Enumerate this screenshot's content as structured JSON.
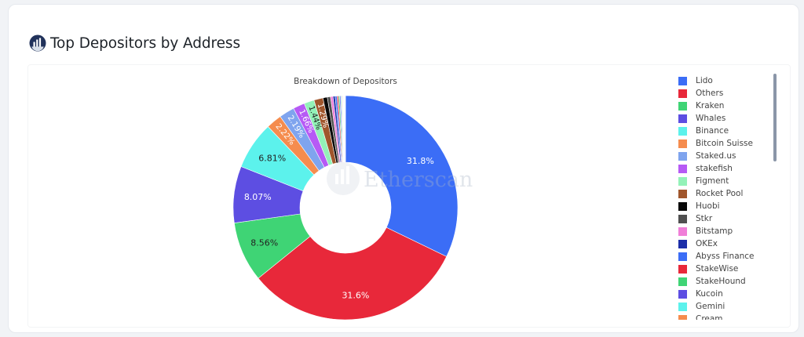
{
  "header": {
    "title": "Top Depositors by Address",
    "logo_icon": "etherscan-logo-icon"
  },
  "watermark": {
    "text": "Etherscan"
  },
  "chart_data": {
    "type": "pie",
    "donut": true,
    "title": "Breakdown of Depositors",
    "legend_position": "right",
    "slices": [
      {
        "label": "Lido",
        "value": 31.8,
        "color": "#3b6df6",
        "show_label": "31.8%"
      },
      {
        "label": "Others",
        "value": 31.6,
        "color": "#e8283a",
        "show_label": "31.6%"
      },
      {
        "label": "Kraken",
        "value": 8.56,
        "color": "#3fd475",
        "show_label": "8.56%"
      },
      {
        "label": "Whales",
        "value": 8.07,
        "color": "#5d4ee2",
        "show_label": "8.07%"
      },
      {
        "label": "Binance",
        "value": 6.81,
        "color": "#5cf2ec",
        "show_label": "6.81%"
      },
      {
        "label": "Bitcoin Suisse",
        "value": 2.22,
        "color": "#f58c4e",
        "show_label": "2.22%"
      },
      {
        "label": "Staked.us",
        "value": 2.19,
        "color": "#7fa4ee",
        "show_label": "2.19%"
      },
      {
        "label": "stakefish",
        "value": 1.66,
        "color": "#b65af5",
        "show_label": "1.66%"
      },
      {
        "label": "Figment",
        "value": 1.44,
        "color": "#93f2b8",
        "show_label": "1.44%"
      },
      {
        "label": "Rocket Pool",
        "value": 1.29,
        "color": "#a0562c",
        "show_label": "1.29%"
      },
      {
        "label": "Huobi",
        "value": 0.62,
        "color": "#080808",
        "show_label": ""
      },
      {
        "label": "Stkr",
        "value": 0.45,
        "color": "#505050",
        "show_label": ""
      },
      {
        "label": "Bitstamp",
        "value": 0.36,
        "color": "#f07ed8",
        "show_label": ""
      },
      {
        "label": "OKEx",
        "value": 0.3,
        "color": "#1c2ea8",
        "show_label": ""
      },
      {
        "label": "Abyss Finance",
        "value": 0.25,
        "color": "#3b6df6",
        "show_label": ""
      },
      {
        "label": "StakeWise",
        "value": 0.2,
        "color": "#e8283a",
        "show_label": ""
      },
      {
        "label": "StakeHound",
        "value": 0.18,
        "color": "#3fd475",
        "show_label": ""
      },
      {
        "label": "Kucoin",
        "value": 0.15,
        "color": "#5d4ee2",
        "show_label": ""
      },
      {
        "label": "Gemini",
        "value": 0.12,
        "color": "#5cf2ec",
        "show_label": ""
      },
      {
        "label": "Cream",
        "value": 0.1,
        "color": "#f58c4e",
        "show_label": ""
      },
      {
        "label": "",
        "value": 0.08,
        "color": "#7fa4ee",
        "show_label": ""
      },
      {
        "label": "",
        "value": 0.07,
        "color": "#b65af5",
        "show_label": ""
      },
      {
        "label": "",
        "value": 0.06,
        "color": "#93f2b8",
        "show_label": ""
      },
      {
        "label": "",
        "value": 0.05,
        "color": "#a0562c",
        "show_label": ""
      },
      {
        "label": "",
        "value": 0.05,
        "color": "#080808",
        "show_label": ""
      },
      {
        "label": "",
        "value": 0.04,
        "color": "#f07ed8",
        "show_label": ""
      },
      {
        "label": "",
        "value": 0.04,
        "color": "#1c2ea8",
        "show_label": ""
      },
      {
        "label": "",
        "value": 0.03,
        "color": "#3b6df6",
        "show_label": ""
      },
      {
        "label": "",
        "value": 0.03,
        "color": "#e8283a",
        "show_label": ""
      }
    ]
  }
}
